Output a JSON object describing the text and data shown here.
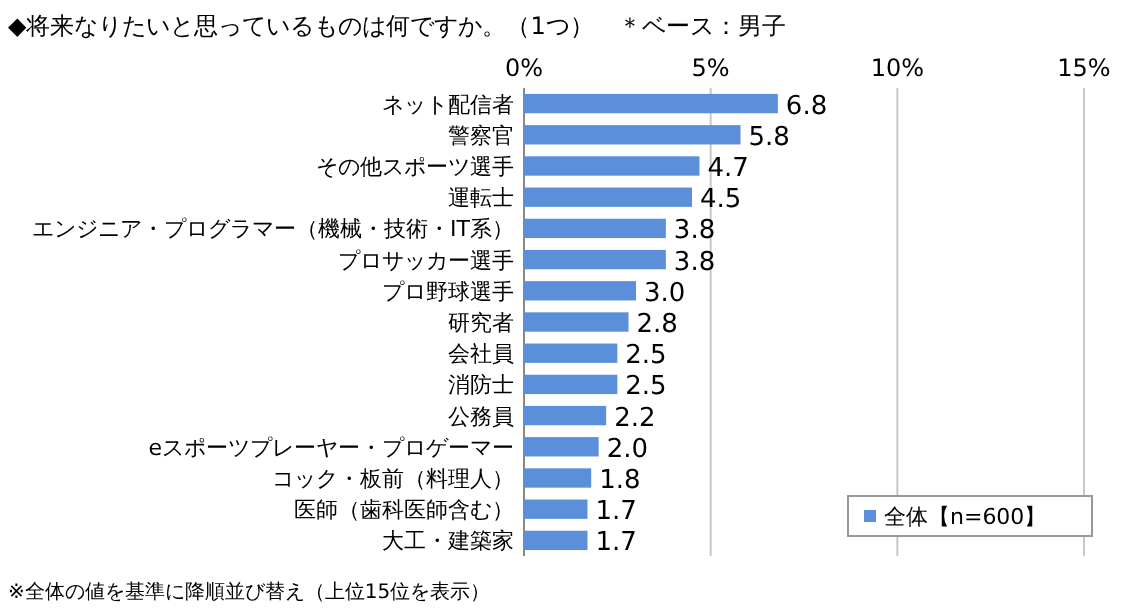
{
  "chart_data": {
    "type": "bar",
    "orientation": "horizontal",
    "title": "◆将来なりたいと思っているものは何ですか。（1つ）　＊ベース：男子",
    "categories": [
      "ネット配信者",
      "警察官",
      "その他スポーツ選手",
      "運転士",
      "エンジニア・プログラマー（機械・技術・IT系）",
      "プロサッカー選手",
      "プロ野球選手",
      "研究者",
      "会社員",
      "消防士",
      "公務員",
      "eスポーツプレーヤー・プロゲーマー",
      "コック・板前（料理人）",
      "医師（歯科医師含む）",
      "大工・建築家"
    ],
    "series": [
      {
        "name": "全体【n=600】",
        "color": "#5b8fd9",
        "values": [
          6.8,
          5.8,
          4.7,
          4.5,
          3.8,
          3.8,
          3.0,
          2.8,
          2.5,
          2.5,
          2.2,
          2.0,
          1.8,
          1.7,
          1.7
        ],
        "value_labels": [
          "6.8",
          "5.8",
          "4.7",
          "4.5",
          "3.8",
          "3.8",
          "3.0",
          "2.8",
          "2.5",
          "2.5",
          "2.2",
          "2.0",
          "1.8",
          "1.7",
          "1.7"
        ]
      }
    ],
    "xlim": [
      0,
      15
    ],
    "xticks": [
      {
        "value": 0,
        "label": "0%"
      },
      {
        "value": 5,
        "label": "5%"
      },
      {
        "value": 10,
        "label": "10%"
      },
      {
        "value": 15,
        "label": "15%"
      }
    ],
    "grid": "x",
    "legend": "bottom right",
    "annotations": [
      "※全体の値を基準に降順並び替え（上位15位を表示）"
    ]
  }
}
